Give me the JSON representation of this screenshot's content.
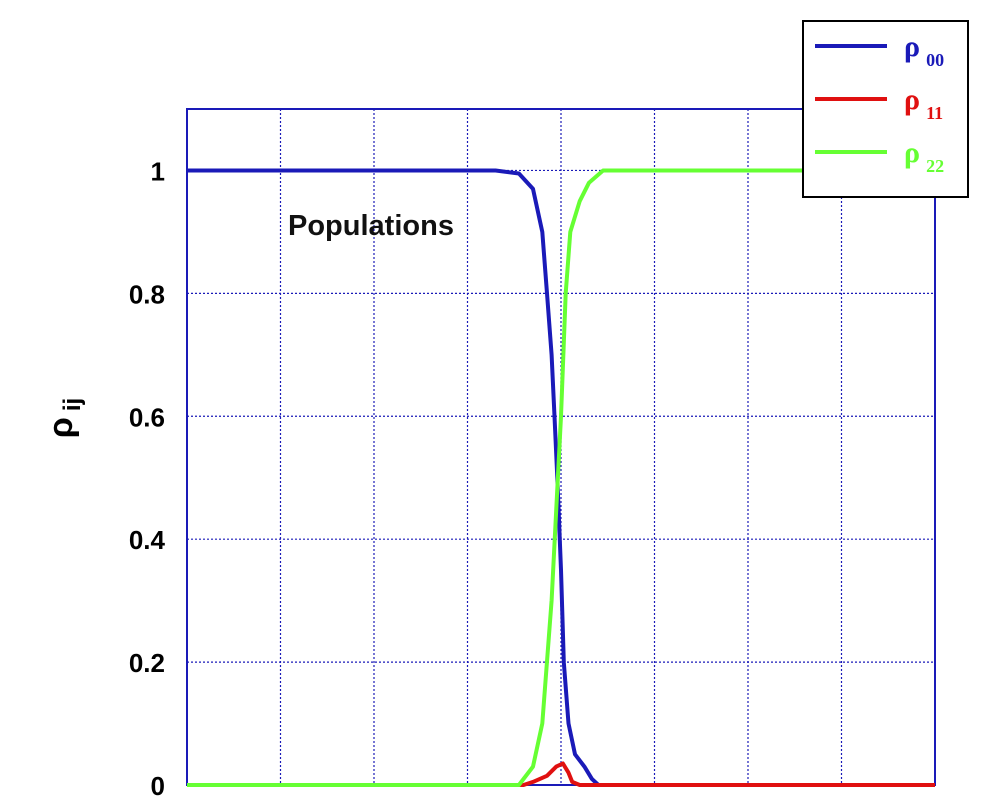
{
  "chart_data": {
    "type": "line",
    "title": "",
    "annotation": "Populations",
    "xlabel": "",
    "ylabel": {
      "symbol": "ρ",
      "subscript": "ij"
    },
    "xlim": [
      0,
      8
    ],
    "ylim": [
      0,
      1.1
    ],
    "yticks": [
      {
        "value": 0,
        "label": "0"
      },
      {
        "value": 0.2,
        "label": "0.2"
      },
      {
        "value": 0.4,
        "label": "0.4"
      },
      {
        "value": 0.6,
        "label": "0.6"
      },
      {
        "value": 0.8,
        "label": "0.8"
      },
      {
        "value": 1,
        "label": "1"
      }
    ],
    "grid": true,
    "legend_position": "top-right",
    "series": [
      {
        "name": "ρ00",
        "symbol": "ρ",
        "subscript": "00",
        "color": "#1a1ab8",
        "points": [
          [
            0,
            1
          ],
          [
            3.3,
            1
          ],
          [
            3.55,
            0.995
          ],
          [
            3.7,
            0.97
          ],
          [
            3.8,
            0.9
          ],
          [
            3.85,
            0.8
          ],
          [
            3.9,
            0.7
          ],
          [
            3.93,
            0.6
          ],
          [
            3.96,
            0.5
          ],
          [
            4.0,
            0.35
          ],
          [
            4.03,
            0.2
          ],
          [
            4.08,
            0.1
          ],
          [
            4.15,
            0.05
          ],
          [
            4.25,
            0.03
          ],
          [
            4.33,
            0.01
          ],
          [
            4.4,
            0
          ],
          [
            8,
            0
          ]
        ]
      },
      {
        "name": "ρ11",
        "symbol": "ρ",
        "subscript": "11",
        "color": "#e01010",
        "points": [
          [
            0,
            0
          ],
          [
            3.6,
            0
          ],
          [
            3.7,
            0.005
          ],
          [
            3.85,
            0.015
          ],
          [
            3.95,
            0.03
          ],
          [
            4.02,
            0.035
          ],
          [
            4.08,
            0.02
          ],
          [
            4.12,
            0.005
          ],
          [
            4.2,
            0
          ],
          [
            8,
            0
          ]
        ]
      },
      {
        "name": "ρ22",
        "symbol": "ρ",
        "subscript": "22",
        "color": "#66ff33",
        "points": [
          [
            0,
            0
          ],
          [
            3.55,
            0
          ],
          [
            3.7,
            0.03
          ],
          [
            3.8,
            0.1
          ],
          [
            3.9,
            0.3
          ],
          [
            4.0,
            0.6
          ],
          [
            4.05,
            0.8
          ],
          [
            4.1,
            0.9
          ],
          [
            4.2,
            0.95
          ],
          [
            4.3,
            0.98
          ],
          [
            4.45,
            1.0
          ],
          [
            8,
            1.0
          ]
        ]
      }
    ]
  }
}
